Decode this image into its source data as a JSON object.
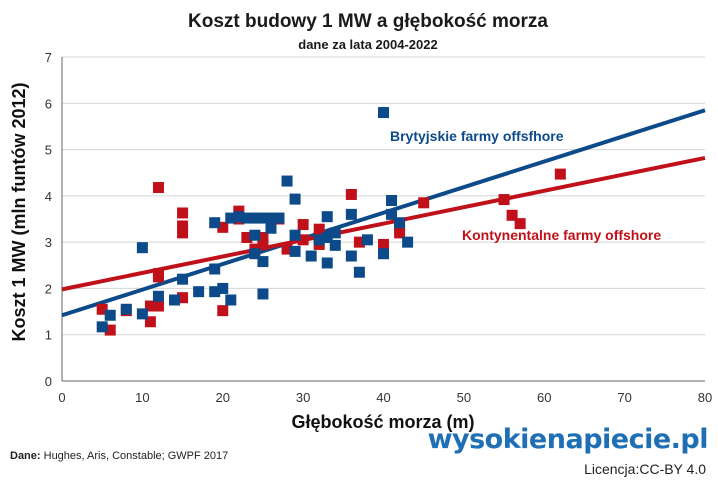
{
  "chart_data": {
    "type": "scatter",
    "title": "Koszt budowy 1 MW a głębokość morza",
    "subtitle": "dane za lata 2004-2022",
    "xlabel": "Głębokość morza (m)",
    "ylabel": "Koszt 1 MW (mln funtów 2012)",
    "xlim": [
      0,
      80
    ],
    "ylim": [
      0,
      7
    ],
    "xticks": [
      "0",
      "10",
      "20",
      "30",
      "40",
      "50",
      "60",
      "70",
      "80"
    ],
    "yticks": [
      "0",
      "1",
      "2",
      "3",
      "4",
      "5",
      "6",
      "7"
    ],
    "grid": "horizontal",
    "series": [
      {
        "name": "Brytyjskie farmy offsfhore",
        "color": "#0d4a8a",
        "trend": [
          [
            0,
            1.42
          ],
          [
            80,
            5.85
          ]
        ],
        "points": [
          [
            5,
            1.17
          ],
          [
            6,
            1.42
          ],
          [
            8,
            1.55
          ],
          [
            10,
            1.45
          ],
          [
            10,
            2.88
          ],
          [
            12,
            1.83
          ],
          [
            14,
            1.75
          ],
          [
            15,
            2.2
          ],
          [
            17,
            1.93
          ],
          [
            19,
            1.93
          ],
          [
            19,
            2.42
          ],
          [
            19,
            3.42
          ],
          [
            20,
            2.0
          ],
          [
            21,
            1.75
          ],
          [
            21,
            3.52
          ],
          [
            22,
            3.55
          ],
          [
            23,
            3.52
          ],
          [
            24,
            2.75
          ],
          [
            24,
            3.15
          ],
          [
            24,
            3.52
          ],
          [
            25,
            1.88
          ],
          [
            25,
            2.58
          ],
          [
            25,
            3.52
          ],
          [
            26,
            3.3
          ],
          [
            26,
            3.52
          ],
          [
            27,
            3.52
          ],
          [
            28,
            4.32
          ],
          [
            29,
            2.8
          ],
          [
            29,
            3.15
          ],
          [
            29,
            3.93
          ],
          [
            31,
            2.7
          ],
          [
            32,
            3.05
          ],
          [
            33,
            2.55
          ],
          [
            33,
            3.55
          ],
          [
            33,
            3.1
          ],
          [
            34,
            3.2
          ],
          [
            34,
            2.93
          ],
          [
            36,
            3.6
          ],
          [
            36,
            2.7
          ],
          [
            37,
            2.35
          ],
          [
            38,
            3.05
          ],
          [
            40,
            2.75
          ],
          [
            40,
            5.8
          ],
          [
            41,
            3.6
          ],
          [
            41,
            3.9
          ],
          [
            42,
            3.42
          ],
          [
            43,
            3.0
          ]
        ]
      },
      {
        "name": "Kontynentalne farmy offshore",
        "color": "#c0111a",
        "trend": [
          [
            0,
            1.98
          ],
          [
            80,
            4.82
          ]
        ],
        "points": [
          [
            5,
            1.55
          ],
          [
            6,
            1.1
          ],
          [
            8,
            1.52
          ],
          [
            11,
            1.28
          ],
          [
            11,
            1.62
          ],
          [
            12,
            1.62
          ],
          [
            12,
            2.25
          ],
          [
            12,
            2.32
          ],
          [
            12,
            4.18
          ],
          [
            15,
            1.8
          ],
          [
            15,
            3.2
          ],
          [
            15,
            3.35
          ],
          [
            15,
            3.63
          ],
          [
            20,
            1.52
          ],
          [
            20,
            3.32
          ],
          [
            22,
            3.5
          ],
          [
            22,
            3.67
          ],
          [
            23,
            3.1
          ],
          [
            24,
            2.85
          ],
          [
            25,
            2.95
          ],
          [
            25,
            3.1
          ],
          [
            27,
            3.5
          ],
          [
            28,
            2.85
          ],
          [
            30,
            3.38
          ],
          [
            30,
            3.05
          ],
          [
            32,
            2.95
          ],
          [
            32,
            3.28
          ],
          [
            32,
            3.12
          ],
          [
            36,
            4.03
          ],
          [
            37,
            3.0
          ],
          [
            40,
            2.95
          ],
          [
            42,
            3.2
          ],
          [
            42,
            3.38
          ],
          [
            45,
            3.85
          ],
          [
            55,
            3.92
          ],
          [
            56,
            3.58
          ],
          [
            57,
            3.4
          ],
          [
            62,
            4.47
          ]
        ]
      }
    ]
  },
  "footer": {
    "source_label": "Dane:",
    "source_text": "Hughes, Aris, Constable; GWPF 2017",
    "brand": "wysokienapiecie.pl",
    "license": "Licencja:CC-BY 4.0"
  }
}
